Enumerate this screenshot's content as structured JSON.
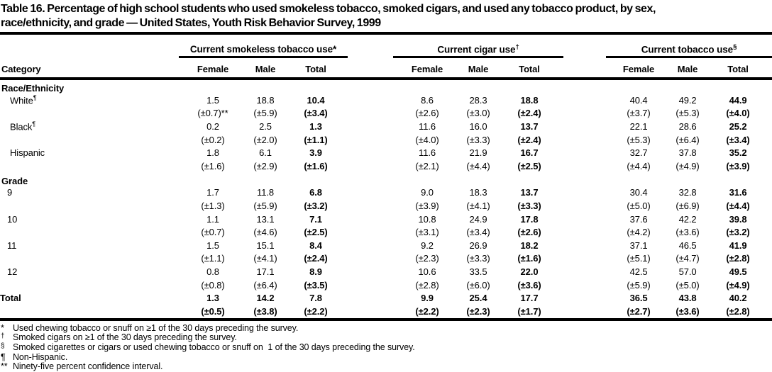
{
  "title": {
    "line1": "Table 16. Percentage of high school students who used smokeless tobacco, smoked cigars, and used any tobacco product, by sex,",
    "line2": "race/ethnicity, and grade — United States, Youth Risk Behavior Survey, 1999"
  },
  "table": {
    "category_header": "Category",
    "groups": [
      {
        "label": "Current smokeless tobacco use",
        "marker": "*",
        "columns": [
          "Female",
          "Male",
          "Total"
        ]
      },
      {
        "label": "Current cigar use",
        "marker": "†",
        "columns": [
          "Female",
          "Male",
          "Total"
        ]
      },
      {
        "label": "Current tobacco use",
        "marker": "§",
        "columns": [
          "Female",
          "Male",
          "Total"
        ]
      }
    ],
    "sections": [
      {
        "heading": "Race/Ethnicity",
        "rows": [
          {
            "label": "White",
            "label_marker": "¶",
            "values": [
              "1.5",
              "18.8",
              "10.4",
              "8.6",
              "28.3",
              "18.8",
              "40.4",
              "49.2",
              "44.9"
            ],
            "ci": [
              "(±0.7)**",
              "(±5.9)",
              "(±3.4)",
              "(±2.6)",
              "(±3.0)",
              "(±2.4)",
              "(±3.7)",
              "(±5.3)",
              "(±4.0)"
            ]
          },
          {
            "label": "Black",
            "label_marker": "¶",
            "values": [
              "0.2",
              "2.5",
              "1.3",
              "11.6",
              "16.0",
              "13.7",
              "22.1",
              "28.6",
              "25.2"
            ],
            "ci": [
              "(±0.2)",
              "(±2.0)",
              "(±1.1)",
              "(±4.0)",
              "(±3.3)",
              "(±2.4)",
              "(±5.3)",
              "(±6.4)",
              "(±3.4)"
            ]
          },
          {
            "label": "Hispanic",
            "label_marker": "",
            "values": [
              "1.8",
              "6.1",
              "3.9",
              "11.6",
              "21.9",
              "16.7",
              "32.7",
              "37.8",
              "35.2"
            ],
            "ci": [
              "(±1.6)",
              "(±2.9)",
              "(±1.6)",
              "(±2.1)",
              "(±4.4)",
              "(±2.5)",
              "(±4.4)",
              "(±4.9)",
              "(±3.9)"
            ]
          }
        ]
      },
      {
        "heading": "Grade",
        "rows": [
          {
            "label": "9",
            "label_marker": "",
            "values": [
              "1.7",
              "11.8",
              "6.8",
              "9.0",
              "18.3",
              "13.7",
              "30.4",
              "32.8",
              "31.6"
            ],
            "ci": [
              "(±1.3)",
              "(±5.9)",
              "(±3.2)",
              "(±3.9)",
              "(±4.1)",
              "(±3.3)",
              "(±5.0)",
              "(±6.9)",
              "(±4.4)"
            ]
          },
          {
            "label": "10",
            "label_marker": "",
            "values": [
              "1.1",
              "13.1",
              "7.1",
              "10.8",
              "24.9",
              "17.8",
              "37.6",
              "42.2",
              "39.8"
            ],
            "ci": [
              "(±0.7)",
              "(±4.6)",
              "(±2.5)",
              "(±3.1)",
              "(±3.4)",
              "(±2.6)",
              "(±4.2)",
              "(±3.6)",
              "(±3.2)"
            ]
          },
          {
            "label": "11",
            "label_marker": "",
            "values": [
              "1.5",
              "15.1",
              "8.4",
              "9.2",
              "26.9",
              "18.2",
              "37.1",
              "46.5",
              "41.9"
            ],
            "ci": [
              "(±1.1)",
              "(±4.1)",
              "(±2.4)",
              "(±2.3)",
              "(±3.3)",
              "(±1.6)",
              "(±5.1)",
              "(±4.7)",
              "(±2.8)"
            ]
          },
          {
            "label": "12",
            "label_marker": "",
            "values": [
              "0.8",
              "17.1",
              "8.9",
              "10.6",
              "33.5",
              "22.0",
              "42.5",
              "57.0",
              "49.5"
            ],
            "ci": [
              "(±0.8)",
              "(±6.4)",
              "(±3.5)",
              "(±2.8)",
              "(±6.0)",
              "(±3.6)",
              "(±5.9)",
              "(±5.0)",
              "(±4.9)"
            ]
          }
        ]
      }
    ],
    "total_row": {
      "label": "Total",
      "label_marker": "",
      "bold": true,
      "values": [
        "1.3",
        "14.2",
        "7.8",
        "9.9",
        "25.4",
        "17.7",
        "36.5",
        "43.8",
        "40.2"
      ],
      "ci": [
        "(±0.5)",
        "(±3.8)",
        "(±2.2)",
        "(±2.2)",
        "(±2.3)",
        "(±1.7)",
        "(±2.7)",
        "(±3.6)",
        "(±2.8)"
      ]
    }
  },
  "footnotes": [
    {
      "marker": "*",
      "text": "Used chewing tobacco or snuff on ≥1 of the 30 days preceding the survey."
    },
    {
      "marker": "†",
      "text": "Smoked cigars on ≥1 of the 30 days preceding the survey."
    },
    {
      "marker": "§",
      "text": "Smoked cigarettes or cigars or used chewing tobacco or snuff on  1 of the 30 days preceding the survey."
    },
    {
      "marker": "¶",
      "text": "Non-Hispanic."
    },
    {
      "marker": "**",
      "text": "Ninety-five percent confidence interval."
    }
  ]
}
